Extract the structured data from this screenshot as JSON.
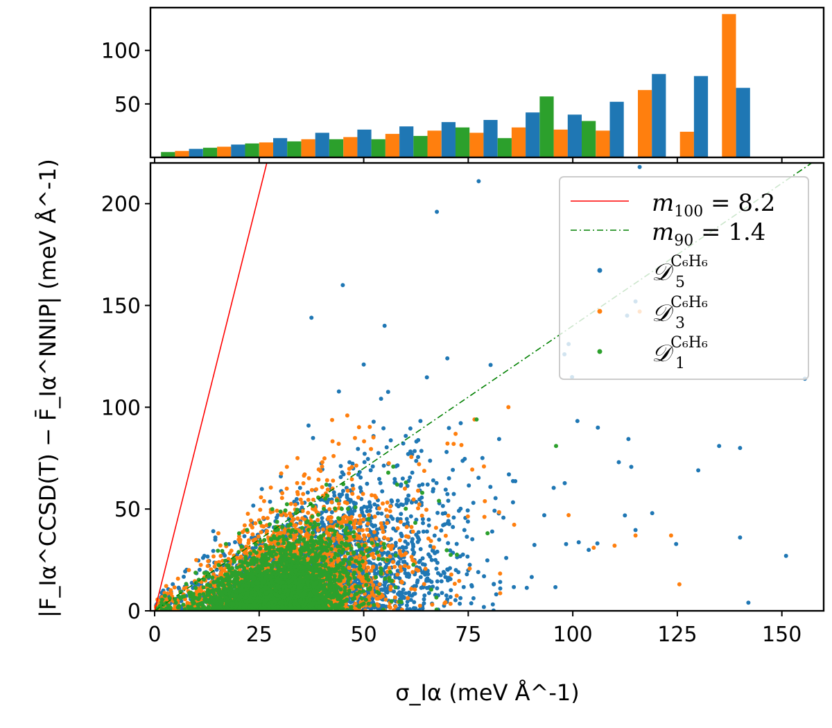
{
  "colors": {
    "blue": "#1f77b4",
    "orange": "#ff7f0e",
    "green": "#2ca02c",
    "red": "#ff0000",
    "darkgreen": "#008000"
  },
  "chart_data": [
    {
      "type": "bar",
      "title": "",
      "xlabel": "",
      "ylabel": "",
      "xlim": [
        0,
        160
      ],
      "ylim": [
        0,
        140
      ],
      "yticks": [
        50,
        100
      ],
      "ytick_labels": [
        "50",
        "100"
      ],
      "bin_centers": [
        7.5,
        17.5,
        27.5,
        37.5,
        47.5,
        57.5,
        67.5,
        77.5,
        87.5,
        97.5,
        107.5,
        117.5,
        127.5,
        137.5
      ],
      "bin_width": 10,
      "series": [
        {
          "name": "D3 C6H6",
          "color_key": "orange",
          "offset": 0,
          "values": [
            6,
            10,
            14,
            17,
            19,
            22,
            25,
            23,
            28,
            26,
            25,
            63,
            24,
            134
          ]
        },
        {
          "name": "D5 C6H6",
          "color_key": "blue",
          "offset": 1,
          "values": [
            8,
            12,
            18,
            23,
            26,
            29,
            33,
            35,
            42,
            40,
            52,
            78,
            76,
            65
          ]
        },
        {
          "name": "D1 C6H6",
          "color_key": "green",
          "offset": -1,
          "values": [
            5,
            9,
            13,
            15,
            17,
            17,
            20,
            28,
            18,
            57,
            34,
            0,
            0,
            0
          ]
        }
      ]
    },
    {
      "type": "scatter",
      "title": "",
      "xlabel": "σ_Iα (meV Å^-1)",
      "ylabel": "|F_Iα^CCSD(T) − F̄_Iα^NNIP| (meV Å^-1)",
      "xlim": [
        -1,
        160
      ],
      "ylim": [
        0,
        220
      ],
      "xticks": [
        0,
        25,
        50,
        75,
        100,
        125,
        150
      ],
      "xtick_labels": [
        "0",
        "25",
        "50",
        "75",
        "100",
        "125",
        "150"
      ],
      "yticks": [
        0,
        50,
        100,
        150,
        200
      ],
      "ytick_labels": [
        "0",
        "50",
        "100",
        "150",
        "200"
      ],
      "lines": [
        {
          "name": "m100 = 8.2",
          "slope": 8.2,
          "color_key": "red",
          "style": "solid"
        },
        {
          "name": "m90 = 1.4",
          "slope": 1.4,
          "color_key": "darkgreen",
          "style": "dashdot"
        }
      ],
      "series": [
        {
          "name": "D5 C6H6",
          "color_key": "blue",
          "n_points": 2600,
          "sigma_mean": 38,
          "sigma_spread": 22,
          "outliers": [
            [
              155.5,
              114
            ],
            [
              151,
              27
            ],
            [
              142,
              4
            ],
            [
              140,
              36
            ],
            [
              135,
              81
            ],
            [
              140,
              80
            ],
            [
              130,
              69
            ],
            [
              116,
              218
            ],
            [
              113,
              145
            ],
            [
              115,
              152
            ],
            [
              99,
              131
            ],
            [
              98,
              126
            ],
            [
              119,
              48
            ],
            [
              111,
              73
            ],
            [
              106,
              90
            ],
            [
              67.5,
              196
            ],
            [
              77.5,
              211
            ],
            [
              37.5,
              144
            ],
            [
              45,
              160
            ],
            [
              55,
              140
            ],
            [
              70,
              124
            ],
            [
              50,
              121
            ]
          ]
        },
        {
          "name": "D3 C6H6",
          "color_key": "orange",
          "n_points": 2300,
          "sigma_mean": 33,
          "sigma_spread": 16,
          "outliers": [
            [
              125.5,
              13
            ],
            [
              123.5,
              37
            ],
            [
              115,
              37
            ],
            [
              110,
              32
            ],
            [
              105,
              31
            ],
            [
              99,
              47
            ],
            [
              116,
              147
            ],
            [
              76.5,
              94
            ],
            [
              71.5,
              82
            ]
          ]
        },
        {
          "name": "D1 C6H6",
          "color_key": "green",
          "n_points": 2600,
          "sigma_mean": 30,
          "sigma_spread": 12,
          "outliers": [
            [
              77,
              94
            ],
            [
              96,
              81
            ],
            [
              64,
              58
            ],
            [
              68,
              54
            ],
            [
              58,
              62
            ]
          ]
        }
      ],
      "legend": {
        "placement": "top-right",
        "entries": [
          {
            "label": "m",
            "sub": "100",
            "rest": " = 8.2",
            "color_key": "red",
            "kind": "line"
          },
          {
            "label": "m",
            "sub": "90",
            "rest": " = 1.4",
            "color_key": "darkgreen",
            "kind": "dashline"
          },
          {
            "label": "𝒟",
            "sub": "5",
            "sup": "C₆H₆",
            "color_key": "blue",
            "kind": "marker"
          },
          {
            "label": "𝒟",
            "sub": "3",
            "sup": "C₆H₆",
            "color_key": "orange",
            "kind": "marker"
          },
          {
            "label": "𝒟",
            "sub": "1",
            "sup": "C₆H₆",
            "color_key": "green",
            "kind": "marker"
          }
        ]
      }
    }
  ]
}
